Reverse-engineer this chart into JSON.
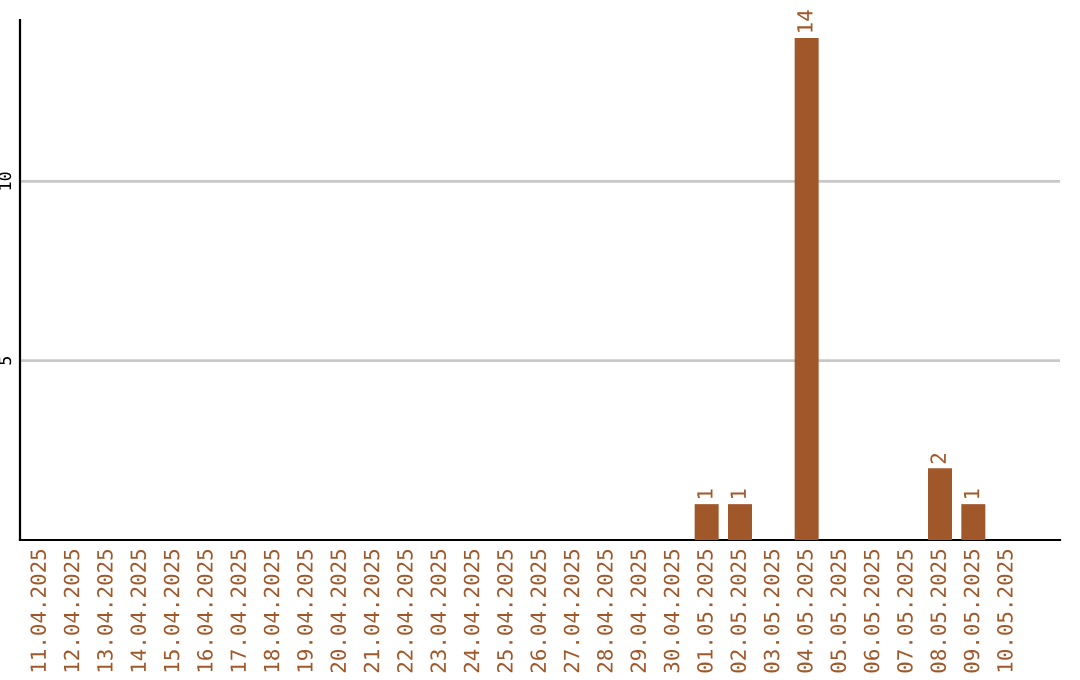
{
  "chart_data": {
    "type": "bar",
    "categories": [
      "11.04.2025",
      "12.04.2025",
      "13.04.2025",
      "14.04.2025",
      "15.04.2025",
      "16.04.2025",
      "17.04.2025",
      "18.04.2025",
      "19.04.2025",
      "20.04.2025",
      "21.04.2025",
      "22.04.2025",
      "23.04.2025",
      "24.04.2025",
      "25.04.2025",
      "26.04.2025",
      "27.04.2025",
      "28.04.2025",
      "29.04.2025",
      "30.04.2025",
      "01.05.2025",
      "02.05.2025",
      "03.05.2025",
      "04.05.2025",
      "05.05.2025",
      "06.05.2025",
      "07.05.2025",
      "08.05.2025",
      "09.05.2025",
      "10.05.2025"
    ],
    "values": [
      0,
      0,
      0,
      0,
      0,
      0,
      0,
      0,
      0,
      0,
      0,
      0,
      0,
      0,
      0,
      0,
      0,
      0,
      0,
      0,
      1,
      1,
      0,
      14,
      0,
      0,
      0,
      2,
      1,
      0
    ],
    "value_labels": [
      null,
      null,
      null,
      null,
      null,
      null,
      null,
      null,
      null,
      null,
      null,
      null,
      null,
      null,
      null,
      null,
      null,
      null,
      null,
      null,
      "1",
      "1",
      null,
      "14",
      null,
      null,
      null,
      "2",
      "1",
      null
    ],
    "color": "#a0582a",
    "ylim": [
      0,
      14.5
    ],
    "yticks": [
      5,
      10
    ],
    "grid": "y"
  }
}
